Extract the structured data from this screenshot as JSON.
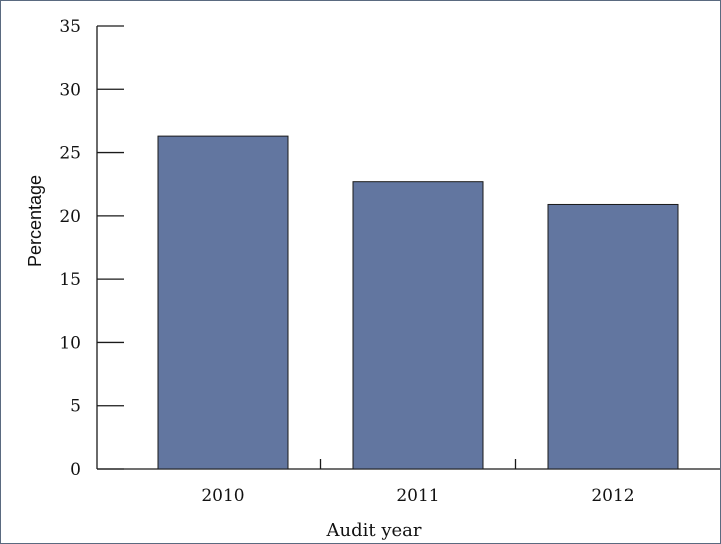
{
  "chart_data": {
    "type": "bar",
    "categories": [
      "2010",
      "2011",
      "2012"
    ],
    "values": [
      26.3,
      22.7,
      20.9
    ],
    "xlabel": "Audit year",
    "ylabel": "Percentage",
    "ylim": [
      0,
      35
    ],
    "yticks": [
      0,
      5,
      10,
      15,
      20,
      25,
      30,
      35
    ],
    "grid": false,
    "bar_color": "#6276a0"
  }
}
